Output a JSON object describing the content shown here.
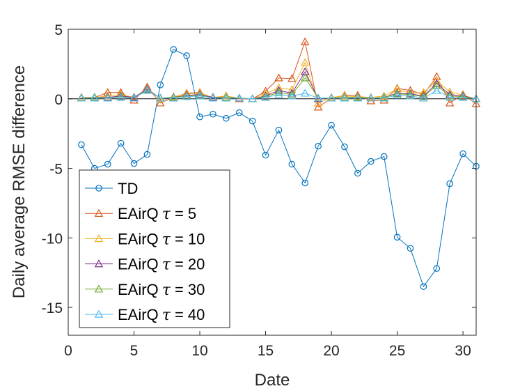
{
  "chart_data": {
    "type": "line",
    "title": "",
    "xlabel": "Date",
    "ylabel": "Daily average RMSE difference",
    "xlim": [
      0,
      31
    ],
    "ylim": [
      -17,
      5
    ],
    "xticks": [
      0,
      5,
      10,
      15,
      20,
      25,
      30
    ],
    "yticks": [
      5,
      0,
      -5,
      -10,
      -15
    ],
    "xtick_labels": [
      "0",
      "5",
      "10",
      "15",
      "20",
      "25",
      "30"
    ],
    "ytick_labels": [
      "5",
      "0",
      "-5",
      "-10",
      "-15"
    ],
    "grid": false,
    "zero_line": true,
    "legend_position": "lower-left",
    "x": [
      1,
      2,
      3,
      4,
      5,
      6,
      7,
      8,
      9,
      10,
      11,
      12,
      13,
      14,
      15,
      16,
      17,
      18,
      19,
      20,
      21,
      22,
      23,
      24,
      25,
      26,
      27,
      28,
      29,
      30,
      31
    ],
    "series": [
      {
        "name": "TD",
        "legend_name": "TD",
        "legend_tau": "",
        "legend_value": "",
        "color": "#0072BD",
        "marker": "circle",
        "values": [
          -3.3,
          -5.0,
          -4.7,
          -3.2,
          -4.65,
          -4.0,
          1.0,
          3.55,
          3.1,
          -1.3,
          -1.1,
          -1.4,
          -1.0,
          -1.6,
          -4.05,
          -2.25,
          -4.7,
          -6.05,
          -3.4,
          -1.9,
          -3.45,
          -5.35,
          -4.5,
          -4.15,
          -9.95,
          -10.75,
          -13.5,
          -12.2,
          -6.1,
          -3.95,
          -4.85
        ]
      },
      {
        "name": "EAirQ τ = 5",
        "legend_name": "EAirQ",
        "legend_tau": "τ",
        "legend_value": " = 5",
        "color": "#D95319",
        "marker": "triangle",
        "values": [
          0.1,
          0.1,
          0.45,
          0.45,
          -0.1,
          0.85,
          -0.3,
          0.1,
          0.4,
          0.45,
          0.05,
          0.2,
          0.0,
          0.0,
          0.55,
          1.5,
          1.45,
          4.1,
          -0.6,
          0.05,
          0.25,
          0.25,
          -0.15,
          -0.1,
          0.75,
          0.6,
          0.3,
          1.6,
          -0.3,
          0.3,
          -0.35
        ]
      },
      {
        "name": "EAirQ τ = 10",
        "legend_name": "EAirQ",
        "legend_tau": "τ",
        "legend_value": " = 10",
        "color": "#EDB120",
        "marker": "triangle",
        "values": [
          0.1,
          0.1,
          0.2,
          0.3,
          0.1,
          0.7,
          0.0,
          0.15,
          0.35,
          0.4,
          0.1,
          0.2,
          0.05,
          0.0,
          0.35,
          0.8,
          0.65,
          2.6,
          -0.3,
          0.1,
          0.2,
          0.15,
          0.1,
          0.2,
          0.7,
          0.4,
          0.45,
          1.3,
          0.5,
          0.25,
          0.0
        ]
      },
      {
        "name": "EAirQ τ = 20",
        "legend_name": "EAirQ",
        "legend_tau": "τ",
        "legend_value": " = 20",
        "color": "#7E2F8E",
        "marker": "triangle",
        "values": [
          0.05,
          0.1,
          0.1,
          0.2,
          0.1,
          0.7,
          0.05,
          0.1,
          0.25,
          0.3,
          0.1,
          0.1,
          0.05,
          0.0,
          0.2,
          0.6,
          0.4,
          1.95,
          0.0,
          0.05,
          0.1,
          0.1,
          0.05,
          0.1,
          0.4,
          0.35,
          0.2,
          1.1,
          0.3,
          0.2,
          0.0
        ]
      },
      {
        "name": "EAirQ τ = 30",
        "legend_name": "EAirQ",
        "legend_tau": "τ",
        "legend_value": " = 30",
        "color": "#77AC30",
        "marker": "triangle",
        "values": [
          0.05,
          0.1,
          0.05,
          0.15,
          0.05,
          0.65,
          0.05,
          0.1,
          0.2,
          0.25,
          0.05,
          0.1,
          0.05,
          0.0,
          0.15,
          0.45,
          0.3,
          1.5,
          0.05,
          0.05,
          0.1,
          0.1,
          0.05,
          0.1,
          0.35,
          0.3,
          0.15,
          0.95,
          0.2,
          0.15,
          0.0
        ]
      },
      {
        "name": "EAirQ τ = 40",
        "legend_name": "EAirQ",
        "legend_tau": "τ",
        "legend_value": " = 40",
        "color": "#4DBEEE",
        "marker": "triangle",
        "values": [
          0.05,
          0.05,
          0.05,
          0.1,
          0.05,
          0.6,
          0.05,
          0.05,
          0.15,
          0.2,
          0.05,
          0.05,
          0.05,
          0.0,
          0.1,
          0.3,
          0.2,
          0.4,
          0.05,
          0.05,
          0.05,
          0.05,
          0.05,
          0.05,
          0.25,
          0.2,
          0.05,
          0.6,
          0.1,
          0.1,
          0.0
        ]
      }
    ]
  }
}
